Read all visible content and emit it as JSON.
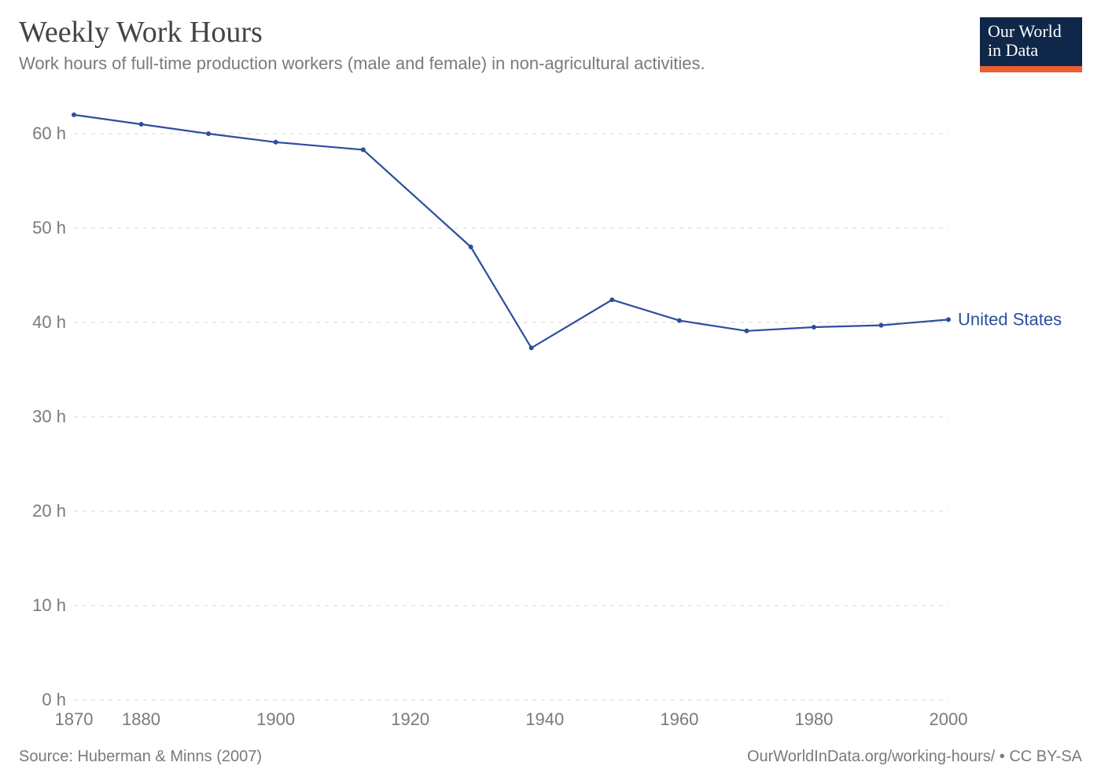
{
  "header": {
    "title": "Weekly Work Hours",
    "subtitle": "Work hours of full-time production workers (male and female) in non-agricultural activities."
  },
  "logo": {
    "line1": "Our World",
    "line2": "in Data",
    "bg_color": "#0f2748",
    "accent_color": "#e95e32",
    "text_color": "#ffffff"
  },
  "chart": {
    "type": "line",
    "background_color": "#ffffff",
    "grid_color": "#d6d6d6",
    "grid_dash": "5 6",
    "axis_text_color": "#7a7a7a",
    "axis_fontsize": 22,
    "x": {
      "min": 1870,
      "max": 2000,
      "ticks": [
        1870,
        1880,
        1900,
        1920,
        1940,
        1960,
        1980,
        2000
      ]
    },
    "y": {
      "min": 0,
      "max": 64,
      "ticks": [
        0,
        10,
        20,
        30,
        40,
        50,
        60
      ],
      "tick_suffix": " h"
    },
    "series": [
      {
        "name": "United States",
        "label": "United States",
        "color": "#2d4e9d",
        "line_width": 2.2,
        "marker_radius": 3,
        "points": [
          {
            "x": 1870,
            "y": 62.0
          },
          {
            "x": 1880,
            "y": 61.0
          },
          {
            "x": 1890,
            "y": 60.0
          },
          {
            "x": 1900,
            "y": 59.1
          },
          {
            "x": 1913,
            "y": 58.3
          },
          {
            "x": 1929,
            "y": 48.0
          },
          {
            "x": 1938,
            "y": 37.3
          },
          {
            "x": 1950,
            "y": 42.4
          },
          {
            "x": 1960,
            "y": 40.2
          },
          {
            "x": 1970,
            "y": 39.1
          },
          {
            "x": 1980,
            "y": 39.5
          },
          {
            "x": 1990,
            "y": 39.7
          },
          {
            "x": 2000,
            "y": 40.3
          }
        ]
      }
    ]
  },
  "footer": {
    "source_label": "Source: Huberman & Minns (2007)",
    "attribution": "OurWorldInData.org/working-hours/ • CC BY-SA"
  }
}
